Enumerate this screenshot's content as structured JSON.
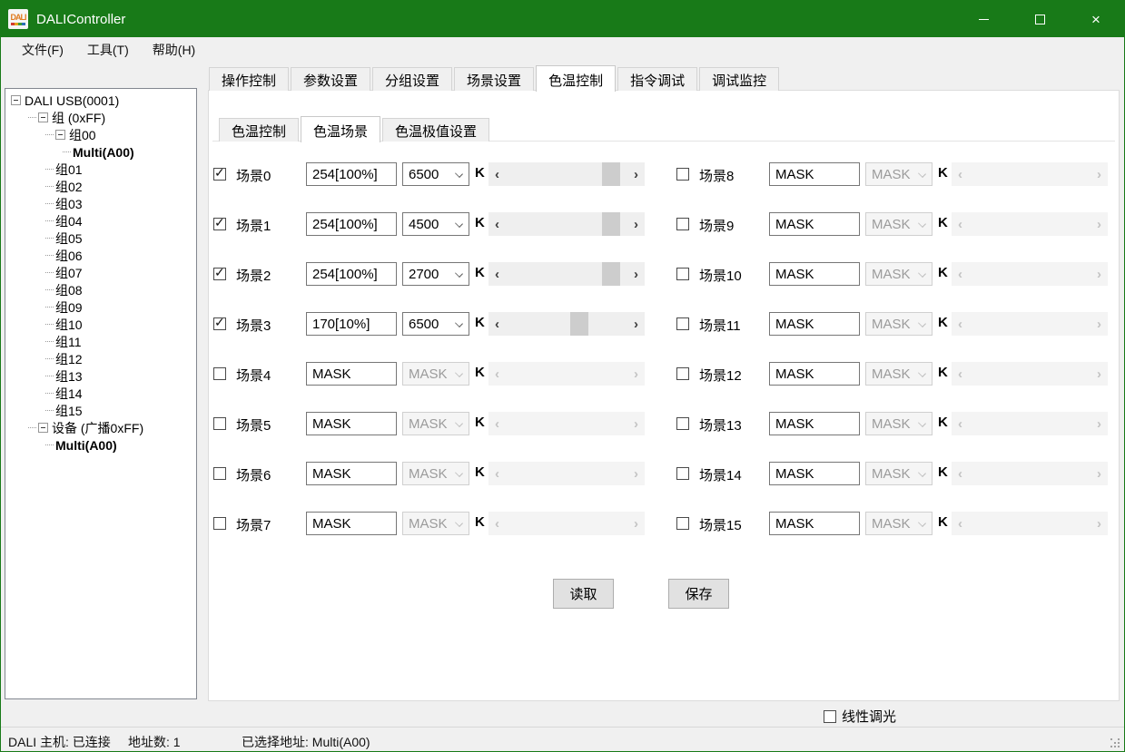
{
  "window": {
    "title": "DALIController",
    "icon_text": "DALI",
    "controls": [
      "minimize",
      "maximize",
      "close"
    ]
  },
  "colors": {
    "titlebar_green": "#187a18",
    "panel_bg": "#ffffff",
    "form_bg": "#f0f0f0",
    "scrollbar_thumb": "#cdcdcd"
  },
  "menu": {
    "items": [
      {
        "label": "文件(F)"
      },
      {
        "label": "工具(T)"
      },
      {
        "label": "帮助(H)"
      }
    ]
  },
  "tree": {
    "items": [
      {
        "label": "DALI USB(0001)",
        "level": 0,
        "expander": true,
        "bold": false
      },
      {
        "label": "组 (0xFF)",
        "level": 1,
        "expander": true,
        "bold": false
      },
      {
        "label": "组00",
        "level": 2,
        "expander": true,
        "bold": false
      },
      {
        "label": "Multi(A00)",
        "level": 3,
        "expander": false,
        "bold": true
      },
      {
        "label": "组01",
        "level": 2,
        "expander": false,
        "bold": false
      },
      {
        "label": "组02",
        "level": 2,
        "expander": false,
        "bold": false
      },
      {
        "label": "组03",
        "level": 2,
        "expander": false,
        "bold": false
      },
      {
        "label": "组04",
        "level": 2,
        "expander": false,
        "bold": false
      },
      {
        "label": "组05",
        "level": 2,
        "expander": false,
        "bold": false
      },
      {
        "label": "组06",
        "level": 2,
        "expander": false,
        "bold": false
      },
      {
        "label": "组07",
        "level": 2,
        "expander": false,
        "bold": false
      },
      {
        "label": "组08",
        "level": 2,
        "expander": false,
        "bold": false
      },
      {
        "label": "组09",
        "level": 2,
        "expander": false,
        "bold": false
      },
      {
        "label": "组10",
        "level": 2,
        "expander": false,
        "bold": false
      },
      {
        "label": "组11",
        "level": 2,
        "expander": false,
        "bold": false
      },
      {
        "label": "组12",
        "level": 2,
        "expander": false,
        "bold": false
      },
      {
        "label": "组13",
        "level": 2,
        "expander": false,
        "bold": false
      },
      {
        "label": "组14",
        "level": 2,
        "expander": false,
        "bold": false
      },
      {
        "label": "组15",
        "level": 2,
        "expander": false,
        "bold": false
      },
      {
        "label": "设备 (广播0xFF)",
        "level": 1,
        "expander": true,
        "bold": false
      },
      {
        "label": "Multi(A00)",
        "level": 2,
        "expander": false,
        "bold": true
      }
    ]
  },
  "tabs": {
    "items": [
      "操作控制",
      "参数设置",
      "分组设置",
      "场景设置",
      "色温控制",
      "指令调试",
      "调试监控"
    ],
    "selected": "色温控制"
  },
  "subtabs": {
    "items": [
      "色温控制",
      "色温场景",
      "色温极值设置"
    ],
    "selected": "色温场景"
  },
  "unit_label": "K",
  "scenes": [
    {
      "label": "场景0",
      "checked": true,
      "level": "254[100%]",
      "temp": "6500",
      "enabled": true,
      "scroll_pos": 0.93
    },
    {
      "label": "场景1",
      "checked": true,
      "level": "254[100%]",
      "temp": "4500",
      "enabled": true,
      "scroll_pos": 0.93
    },
    {
      "label": "场景2",
      "checked": true,
      "level": "254[100%]",
      "temp": "2700",
      "enabled": true,
      "scroll_pos": 0.93
    },
    {
      "label": "场景3",
      "checked": true,
      "level": "170[10%]",
      "temp": "6500",
      "enabled": true,
      "scroll_pos": 0.62
    },
    {
      "label": "场景4",
      "checked": false,
      "level": "MASK",
      "temp": "MASK",
      "enabled": false,
      "scroll_pos": null
    },
    {
      "label": "场景5",
      "checked": false,
      "level": "MASK",
      "temp": "MASK",
      "enabled": false,
      "scroll_pos": null
    },
    {
      "label": "场景6",
      "checked": false,
      "level": "MASK",
      "temp": "MASK",
      "enabled": false,
      "scroll_pos": null
    },
    {
      "label": "场景7",
      "checked": false,
      "level": "MASK",
      "temp": "MASK",
      "enabled": false,
      "scroll_pos": null
    },
    {
      "label": "场景8",
      "checked": false,
      "level": "MASK",
      "temp": "MASK",
      "enabled": false,
      "scroll_pos": null
    },
    {
      "label": "场景9",
      "checked": false,
      "level": "MASK",
      "temp": "MASK",
      "enabled": false,
      "scroll_pos": null
    },
    {
      "label": "场景10",
      "checked": false,
      "level": "MASK",
      "temp": "MASK",
      "enabled": false,
      "scroll_pos": null
    },
    {
      "label": "场景11",
      "checked": false,
      "level": "MASK",
      "temp": "MASK",
      "enabled": false,
      "scroll_pos": null
    },
    {
      "label": "场景12",
      "checked": false,
      "level": "MASK",
      "temp": "MASK",
      "enabled": false,
      "scroll_pos": null
    },
    {
      "label": "场景13",
      "checked": false,
      "level": "MASK",
      "temp": "MASK",
      "enabled": false,
      "scroll_pos": null
    },
    {
      "label": "场景14",
      "checked": false,
      "level": "MASK",
      "temp": "MASK",
      "enabled": false,
      "scroll_pos": null
    },
    {
      "label": "场景15",
      "checked": false,
      "level": "MASK",
      "temp": "MASK",
      "enabled": false,
      "scroll_pos": null
    }
  ],
  "buttons": {
    "read": "读取",
    "save": "保存"
  },
  "linear_dimming": {
    "label": "线性调光",
    "checked": false
  },
  "statusbar": {
    "host": "DALI 主机: 已连接",
    "address_count": "地址数: 1",
    "selected_address": "已选择地址: Multi(A00)"
  }
}
